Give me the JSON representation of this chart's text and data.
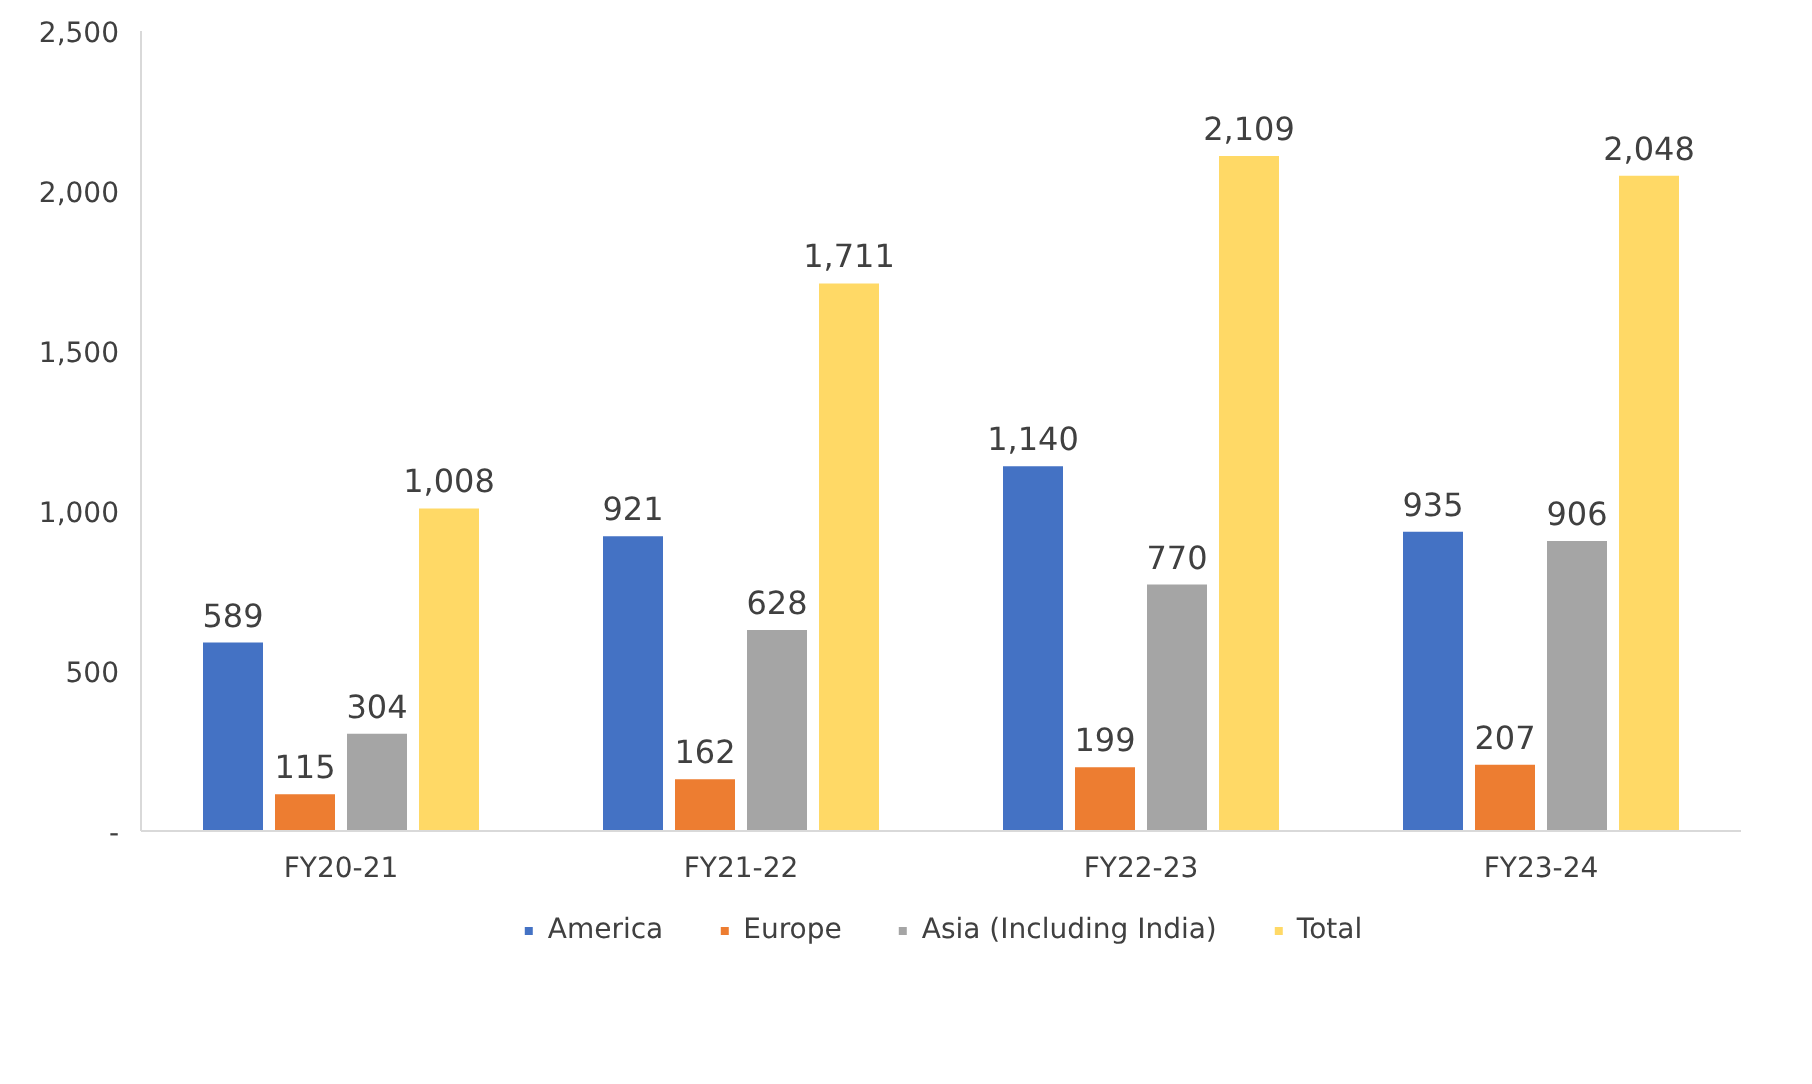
{
  "chart_data": {
    "type": "bar",
    "categories": [
      "FY20-21",
      "FY21-22",
      "FY22-23",
      "FY23-24"
    ],
    "series": [
      {
        "name": "America",
        "color": "#4472c4",
        "values": [
          589,
          921,
          1140,
          935
        ],
        "value_labels": [
          "589",
          "921",
          "1,140",
          "935"
        ]
      },
      {
        "name": "Europe",
        "color": "#ed7d31",
        "values": [
          115,
          162,
          199,
          207
        ],
        "value_labels": [
          "115",
          "162",
          "199",
          "207"
        ]
      },
      {
        "name": "Asia (Including India)",
        "color": "#a5a5a5",
        "values": [
          304,
          628,
          770,
          906
        ],
        "value_labels": [
          "304",
          "628",
          "770",
          "906"
        ]
      },
      {
        "name": "Total",
        "color": "#ffd966",
        "values": [
          1008,
          1711,
          2109,
          2048
        ],
        "value_labels": [
          "1,008",
          "1,711",
          "2,109",
          "2,048"
        ]
      }
    ],
    "ylim": [
      0,
      2500
    ],
    "yticks": [
      {
        "value": 0,
        "label": "-"
      },
      500,
      {
        "value": 1000,
        "label": "1,000"
      },
      {
        "value": 1500,
        "label": "1,500"
      },
      {
        "value": 2000,
        "label": "2,000"
      },
      {
        "value": 2500,
        "label": "2,500"
      }
    ],
    "grid": false,
    "legend": "bottom"
  }
}
